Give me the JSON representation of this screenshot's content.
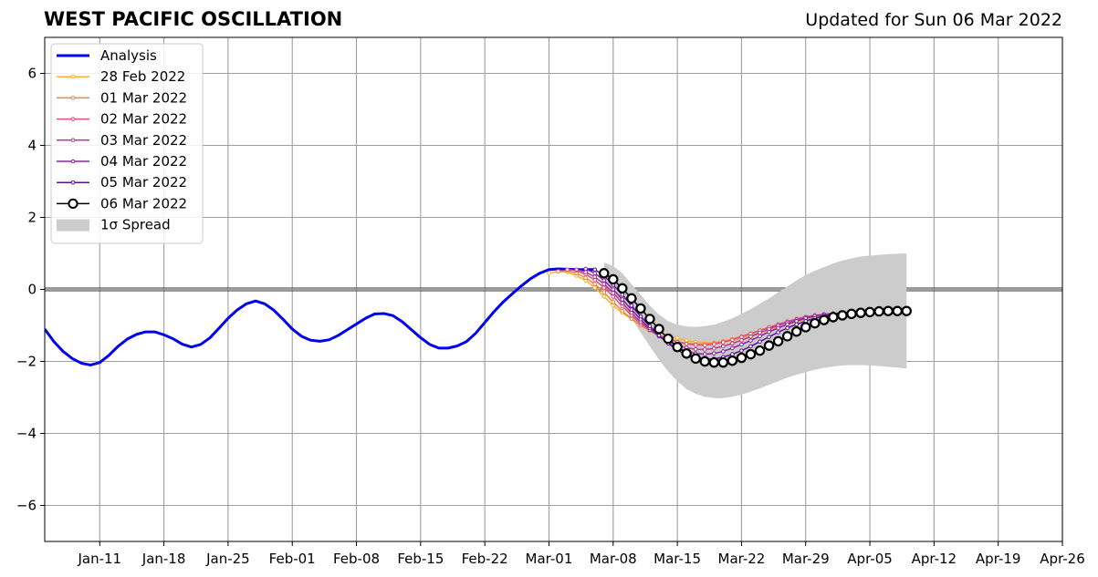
{
  "header": {
    "title": "WEST PACIFIC OSCILLATION",
    "updated": "Updated for Sun 06 Mar 2022"
  },
  "chart_data": {
    "type": "line",
    "title": "WEST PACIFIC OSCILLATION",
    "subtitle": "Updated for Sun 06 Mar 2022",
    "xlabel": "",
    "ylabel": "",
    "xlim": [
      "2022-01-05",
      "2022-04-26"
    ],
    "ylim": [
      -7,
      7
    ],
    "x_ticks": [
      "Jan-11",
      "Jan-18",
      "Jan-25",
      "Feb-01",
      "Feb-08",
      "Feb-15",
      "Feb-22",
      "Mar-01",
      "Mar-08",
      "Mar-15",
      "Mar-22",
      "Mar-29",
      "Apr-05",
      "Apr-12",
      "Apr-19",
      "Apr-26"
    ],
    "y_ticks": [
      -6,
      -4,
      -2,
      0,
      2,
      4,
      6
    ],
    "y_tick_labels": [
      "−6",
      "−4",
      "−2",
      "0",
      "2",
      "4",
      "6"
    ],
    "grid": true,
    "zero_line": 0,
    "legend_position": "top-left",
    "analysis": {
      "name": "Analysis",
      "color": "#0000ee",
      "points": [
        [
          "2022-01-05",
          -1.1
        ],
        [
          "2022-01-06",
          -1.45
        ],
        [
          "2022-01-07",
          -1.72
        ],
        [
          "2022-01-08",
          -1.92
        ],
        [
          "2022-01-09",
          -2.05
        ],
        [
          "2022-01-10",
          -2.1
        ],
        [
          "2022-01-11",
          -2.03
        ],
        [
          "2022-01-12",
          -1.83
        ],
        [
          "2022-01-13",
          -1.58
        ],
        [
          "2022-01-14",
          -1.38
        ],
        [
          "2022-01-15",
          -1.25
        ],
        [
          "2022-01-16",
          -1.18
        ],
        [
          "2022-01-17",
          -1.18
        ],
        [
          "2022-01-18",
          -1.26
        ],
        [
          "2022-01-19",
          -1.37
        ],
        [
          "2022-01-20",
          -1.52
        ],
        [
          "2022-01-21",
          -1.6
        ],
        [
          "2022-01-22",
          -1.53
        ],
        [
          "2022-01-23",
          -1.35
        ],
        [
          "2022-01-24",
          -1.08
        ],
        [
          "2022-01-25",
          -0.8
        ],
        [
          "2022-01-26",
          -0.57
        ],
        [
          "2022-01-27",
          -0.4
        ],
        [
          "2022-01-28",
          -0.32
        ],
        [
          "2022-01-29",
          -0.4
        ],
        [
          "2022-01-30",
          -0.58
        ],
        [
          "2022-01-31",
          -0.83
        ],
        [
          "2022-02-01",
          -1.1
        ],
        [
          "2022-02-02",
          -1.3
        ],
        [
          "2022-02-03",
          -1.41
        ],
        [
          "2022-02-04",
          -1.44
        ],
        [
          "2022-02-05",
          -1.4
        ],
        [
          "2022-02-06",
          -1.28
        ],
        [
          "2022-02-07",
          -1.12
        ],
        [
          "2022-02-08",
          -0.96
        ],
        [
          "2022-02-09",
          -0.8
        ],
        [
          "2022-02-10",
          -0.68
        ],
        [
          "2022-02-11",
          -0.67
        ],
        [
          "2022-02-12",
          -0.73
        ],
        [
          "2022-02-13",
          -0.9
        ],
        [
          "2022-02-14",
          -1.12
        ],
        [
          "2022-02-15",
          -1.34
        ],
        [
          "2022-02-16",
          -1.53
        ],
        [
          "2022-02-17",
          -1.63
        ],
        [
          "2022-02-18",
          -1.63
        ],
        [
          "2022-02-19",
          -1.57
        ],
        [
          "2022-02-20",
          -1.45
        ],
        [
          "2022-02-21",
          -1.22
        ],
        [
          "2022-02-22",
          -0.92
        ],
        [
          "2022-02-23",
          -0.62
        ],
        [
          "2022-02-24",
          -0.35
        ],
        [
          "2022-02-25",
          -0.12
        ],
        [
          "2022-02-26",
          0.1
        ],
        [
          "2022-02-27",
          0.3
        ],
        [
          "2022-02-28",
          0.45
        ],
        [
          "2022-03-01",
          0.55
        ],
        [
          "2022-03-02",
          0.57
        ],
        [
          "2022-03-03",
          0.56
        ],
        [
          "2022-03-04",
          0.55
        ],
        [
          "2022-03-05",
          0.55
        ],
        [
          "2022-03-06",
          0.55
        ]
      ]
    },
    "forecasts": [
      {
        "name": "28 Feb 2022",
        "color": "#f7b228",
        "start": "2022-03-01",
        "values": [
          0.45,
          0.5,
          0.48,
          0.38,
          0.25,
          0.05,
          -0.2,
          -0.45,
          -0.65,
          -0.82,
          -0.98,
          -1.1,
          -1.2,
          -1.28,
          -1.35,
          -1.42,
          -1.46,
          -1.48,
          -1.48,
          -1.46,
          -1.41,
          -1.35,
          -1.28,
          -1.2,
          -1.13,
          -1.05,
          -0.98,
          -0.9,
          -0.84,
          -0.78,
          -0.73,
          -0.7,
          -0.68,
          -0.66,
          -0.65
        ]
      },
      {
        "name": "01 Mar 2022",
        "color": "#f0843c",
        "start": "2022-03-02",
        "values": [
          0.5,
          0.52,
          0.45,
          0.32,
          0.15,
          -0.08,
          -0.35,
          -0.6,
          -0.82,
          -1.0,
          -1.15,
          -1.28,
          -1.38,
          -1.45,
          -1.5,
          -1.52,
          -1.52,
          -1.49,
          -1.44,
          -1.38,
          -1.3,
          -1.22,
          -1.14,
          -1.06,
          -0.98,
          -0.9,
          -0.84,
          -0.78,
          -0.73,
          -0.7,
          -0.68,
          -0.66,
          -0.65,
          -0.64
        ]
      },
      {
        "name": "02 Mar 2022",
        "color": "#de5076",
        "start": "2022-03-03",
        "values": [
          0.55,
          0.52,
          0.42,
          0.26,
          0.05,
          -0.2,
          -0.47,
          -0.72,
          -0.95,
          -1.12,
          -1.27,
          -1.38,
          -1.46,
          -1.51,
          -1.54,
          -1.55,
          -1.52,
          -1.47,
          -1.4,
          -1.32,
          -1.23,
          -1.14,
          -1.05,
          -0.97,
          -0.89,
          -0.82,
          -0.76,
          -0.72,
          -0.69,
          -0.67,
          -0.65,
          -0.64,
          -0.63
        ]
      },
      {
        "name": "03 Mar 2022",
        "color": "#b83a90",
        "start": "2022-03-04",
        "values": [
          0.55,
          0.48,
          0.35,
          0.15,
          -0.1,
          -0.38,
          -0.65,
          -0.9,
          -1.12,
          -1.3,
          -1.44,
          -1.55,
          -1.62,
          -1.66,
          -1.67,
          -1.64,
          -1.58,
          -1.5,
          -1.41,
          -1.31,
          -1.2,
          -1.1,
          -1.0,
          -0.92,
          -0.84,
          -0.78,
          -0.73,
          -0.69,
          -0.67,
          -0.65,
          -0.64,
          -0.63
        ]
      },
      {
        "name": "04 Mar 2022",
        "color": "#8a22a6",
        "start": "2022-03-05",
        "values": [
          0.57,
          0.45,
          0.25,
          0.0,
          -0.28,
          -0.56,
          -0.83,
          -1.08,
          -1.3,
          -1.48,
          -1.62,
          -1.72,
          -1.78,
          -1.8,
          -1.78,
          -1.72,
          -1.63,
          -1.53,
          -1.42,
          -1.3,
          -1.18,
          -1.07,
          -0.97,
          -0.88,
          -0.8,
          -0.74,
          -0.7,
          -0.67,
          -0.65,
          -0.64,
          -0.63
        ]
      },
      {
        "name": "05 Mar 2022",
        "color": "#5d0fa0",
        "start": "2022-03-06",
        "values": [
          0.55,
          0.38,
          0.13,
          -0.15,
          -0.45,
          -0.75,
          -1.02,
          -1.28,
          -1.5,
          -1.68,
          -1.82,
          -1.9,
          -1.94,
          -1.93,
          -1.88,
          -1.8,
          -1.7,
          -1.58,
          -1.45,
          -1.32,
          -1.19,
          -1.07,
          -0.97,
          -0.88,
          -0.8,
          -0.74,
          -0.7,
          -0.67,
          -0.65,
          -0.64
        ]
      },
      {
        "name": "06 Mar 2022",
        "color": "#000000",
        "start": "2022-03-07",
        "values": [
          0.45,
          0.28,
          0.03,
          -0.25,
          -0.53,
          -0.82,
          -1.1,
          -1.37,
          -1.6,
          -1.78,
          -1.92,
          -2.0,
          -2.03,
          -2.03,
          -1.98,
          -1.9,
          -1.8,
          -1.7,
          -1.56,
          -1.44,
          -1.3,
          -1.17,
          -1.05,
          -0.94,
          -0.85,
          -0.77,
          -0.72,
          -0.68,
          -0.65,
          -0.63,
          -0.61,
          -0.6,
          -0.6,
          -0.6
        ]
      }
    ],
    "spread": {
      "name": "1σ Spread",
      "color": "#cccccc",
      "start": "2022-03-07",
      "upper": [
        0.75,
        0.65,
        0.45,
        0.15,
        -0.15,
        -0.45,
        -0.7,
        -0.88,
        -0.98,
        -1.03,
        -1.04,
        -1.02,
        -0.98,
        -0.9,
        -0.8,
        -0.68,
        -0.55,
        -0.4,
        -0.25,
        -0.08,
        0.08,
        0.25,
        0.4,
        0.52,
        0.62,
        0.72,
        0.8,
        0.86,
        0.91,
        0.94,
        0.96,
        0.98,
        0.99,
        1.0
      ],
      "lower": [
        0.15,
        -0.05,
        -0.4,
        -0.8,
        -1.2,
        -1.58,
        -1.95,
        -2.28,
        -2.55,
        -2.77,
        -2.9,
        -2.98,
        -3.02,
        -3.02,
        -2.98,
        -2.92,
        -2.84,
        -2.75,
        -2.65,
        -2.55,
        -2.45,
        -2.37,
        -2.3,
        -2.23,
        -2.18,
        -2.14,
        -2.11,
        -2.1,
        -2.1,
        -2.11,
        -2.13,
        -2.15,
        -2.17,
        -2.2
      ]
    }
  }
}
